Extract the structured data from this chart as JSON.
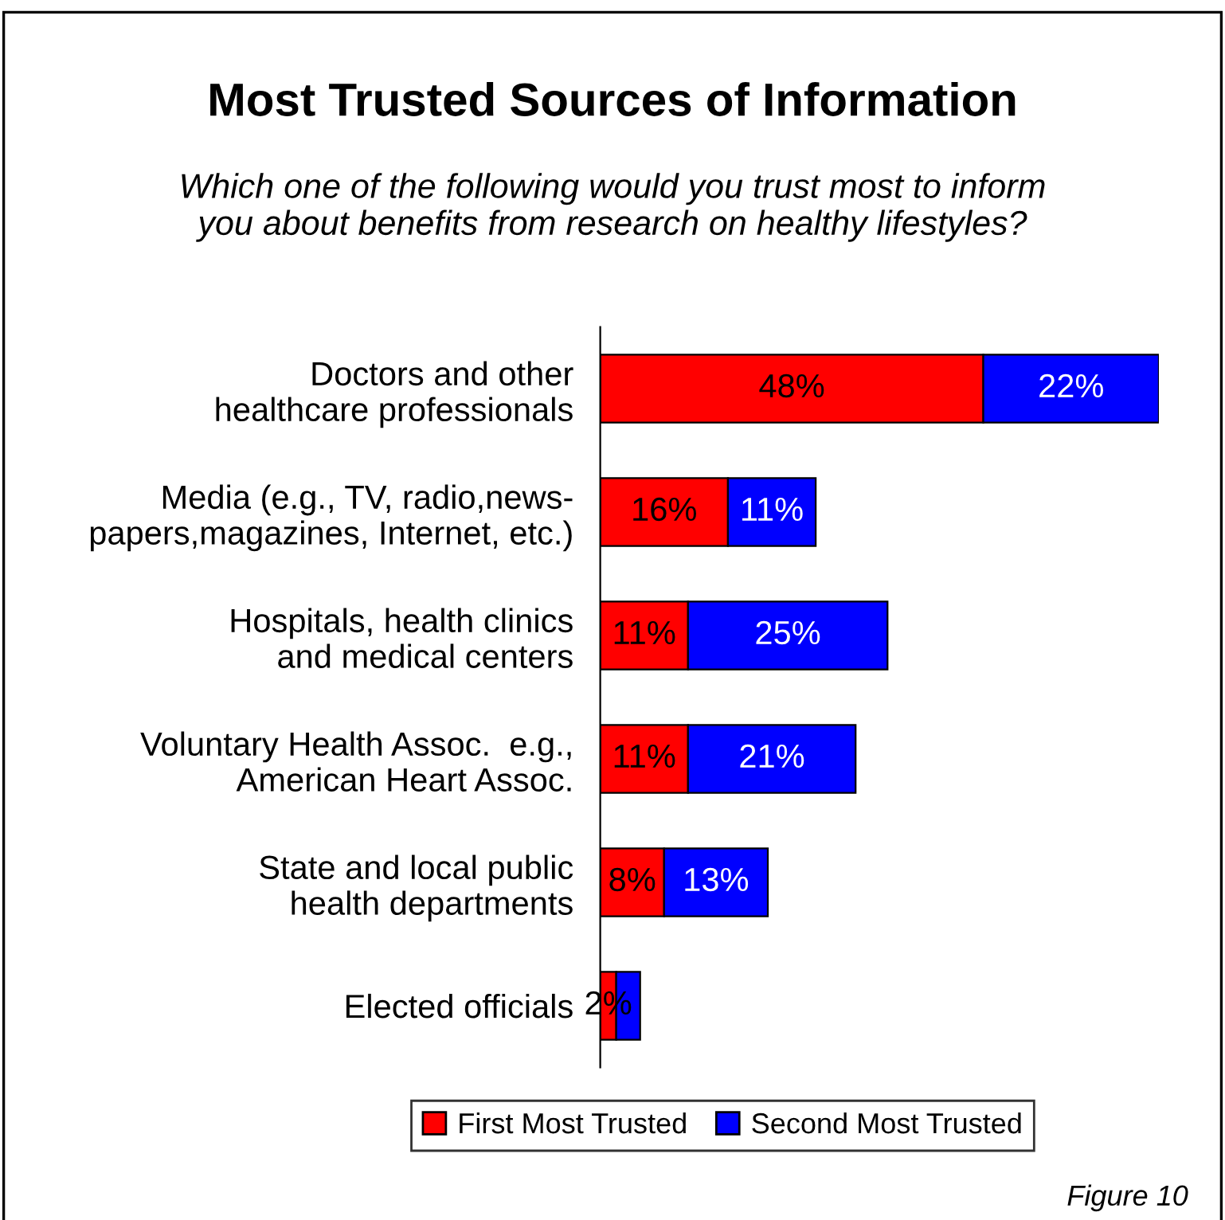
{
  "chart_data": {
    "type": "bar",
    "orientation": "horizontal",
    "stacked": true,
    "title": "Most Trusted Sources of Information",
    "subtitle": "Which one of the following would you trust most to inform\nyou about benefits from research on healthy lifestyles?",
    "categories": [
      "Doctors and other\nhealthcare professionals",
      "Media (e.g., TV, radio,news-\npapers,magazines, Internet, etc.)",
      "Hospitals, health clinics\nand medical centers",
      "Voluntary Health Assoc.  e.g.,\nAmerican Heart Assoc.",
      "State and local public\nhealth departments",
      "Elected officials"
    ],
    "series": [
      {
        "name": "First Most Trusted",
        "color": "#ff0000",
        "values": [
          48,
          16,
          11,
          11,
          8,
          2
        ],
        "value_labels": [
          "48%",
          "16%",
          "11%",
          "11%",
          "8%",
          "2%"
        ]
      },
      {
        "name": "Second Most Trusted",
        "color": "#0000ff",
        "values": [
          22,
          11,
          25,
          21,
          13,
          3
        ],
        "value_labels": [
          "22%",
          "11%",
          "25%",
          "21%",
          "13%",
          null
        ]
      }
    ],
    "tick_labels": "y",
    "legend": "bottom",
    "grid": false,
    "annotations": [
      "Figure 10"
    ]
  }
}
